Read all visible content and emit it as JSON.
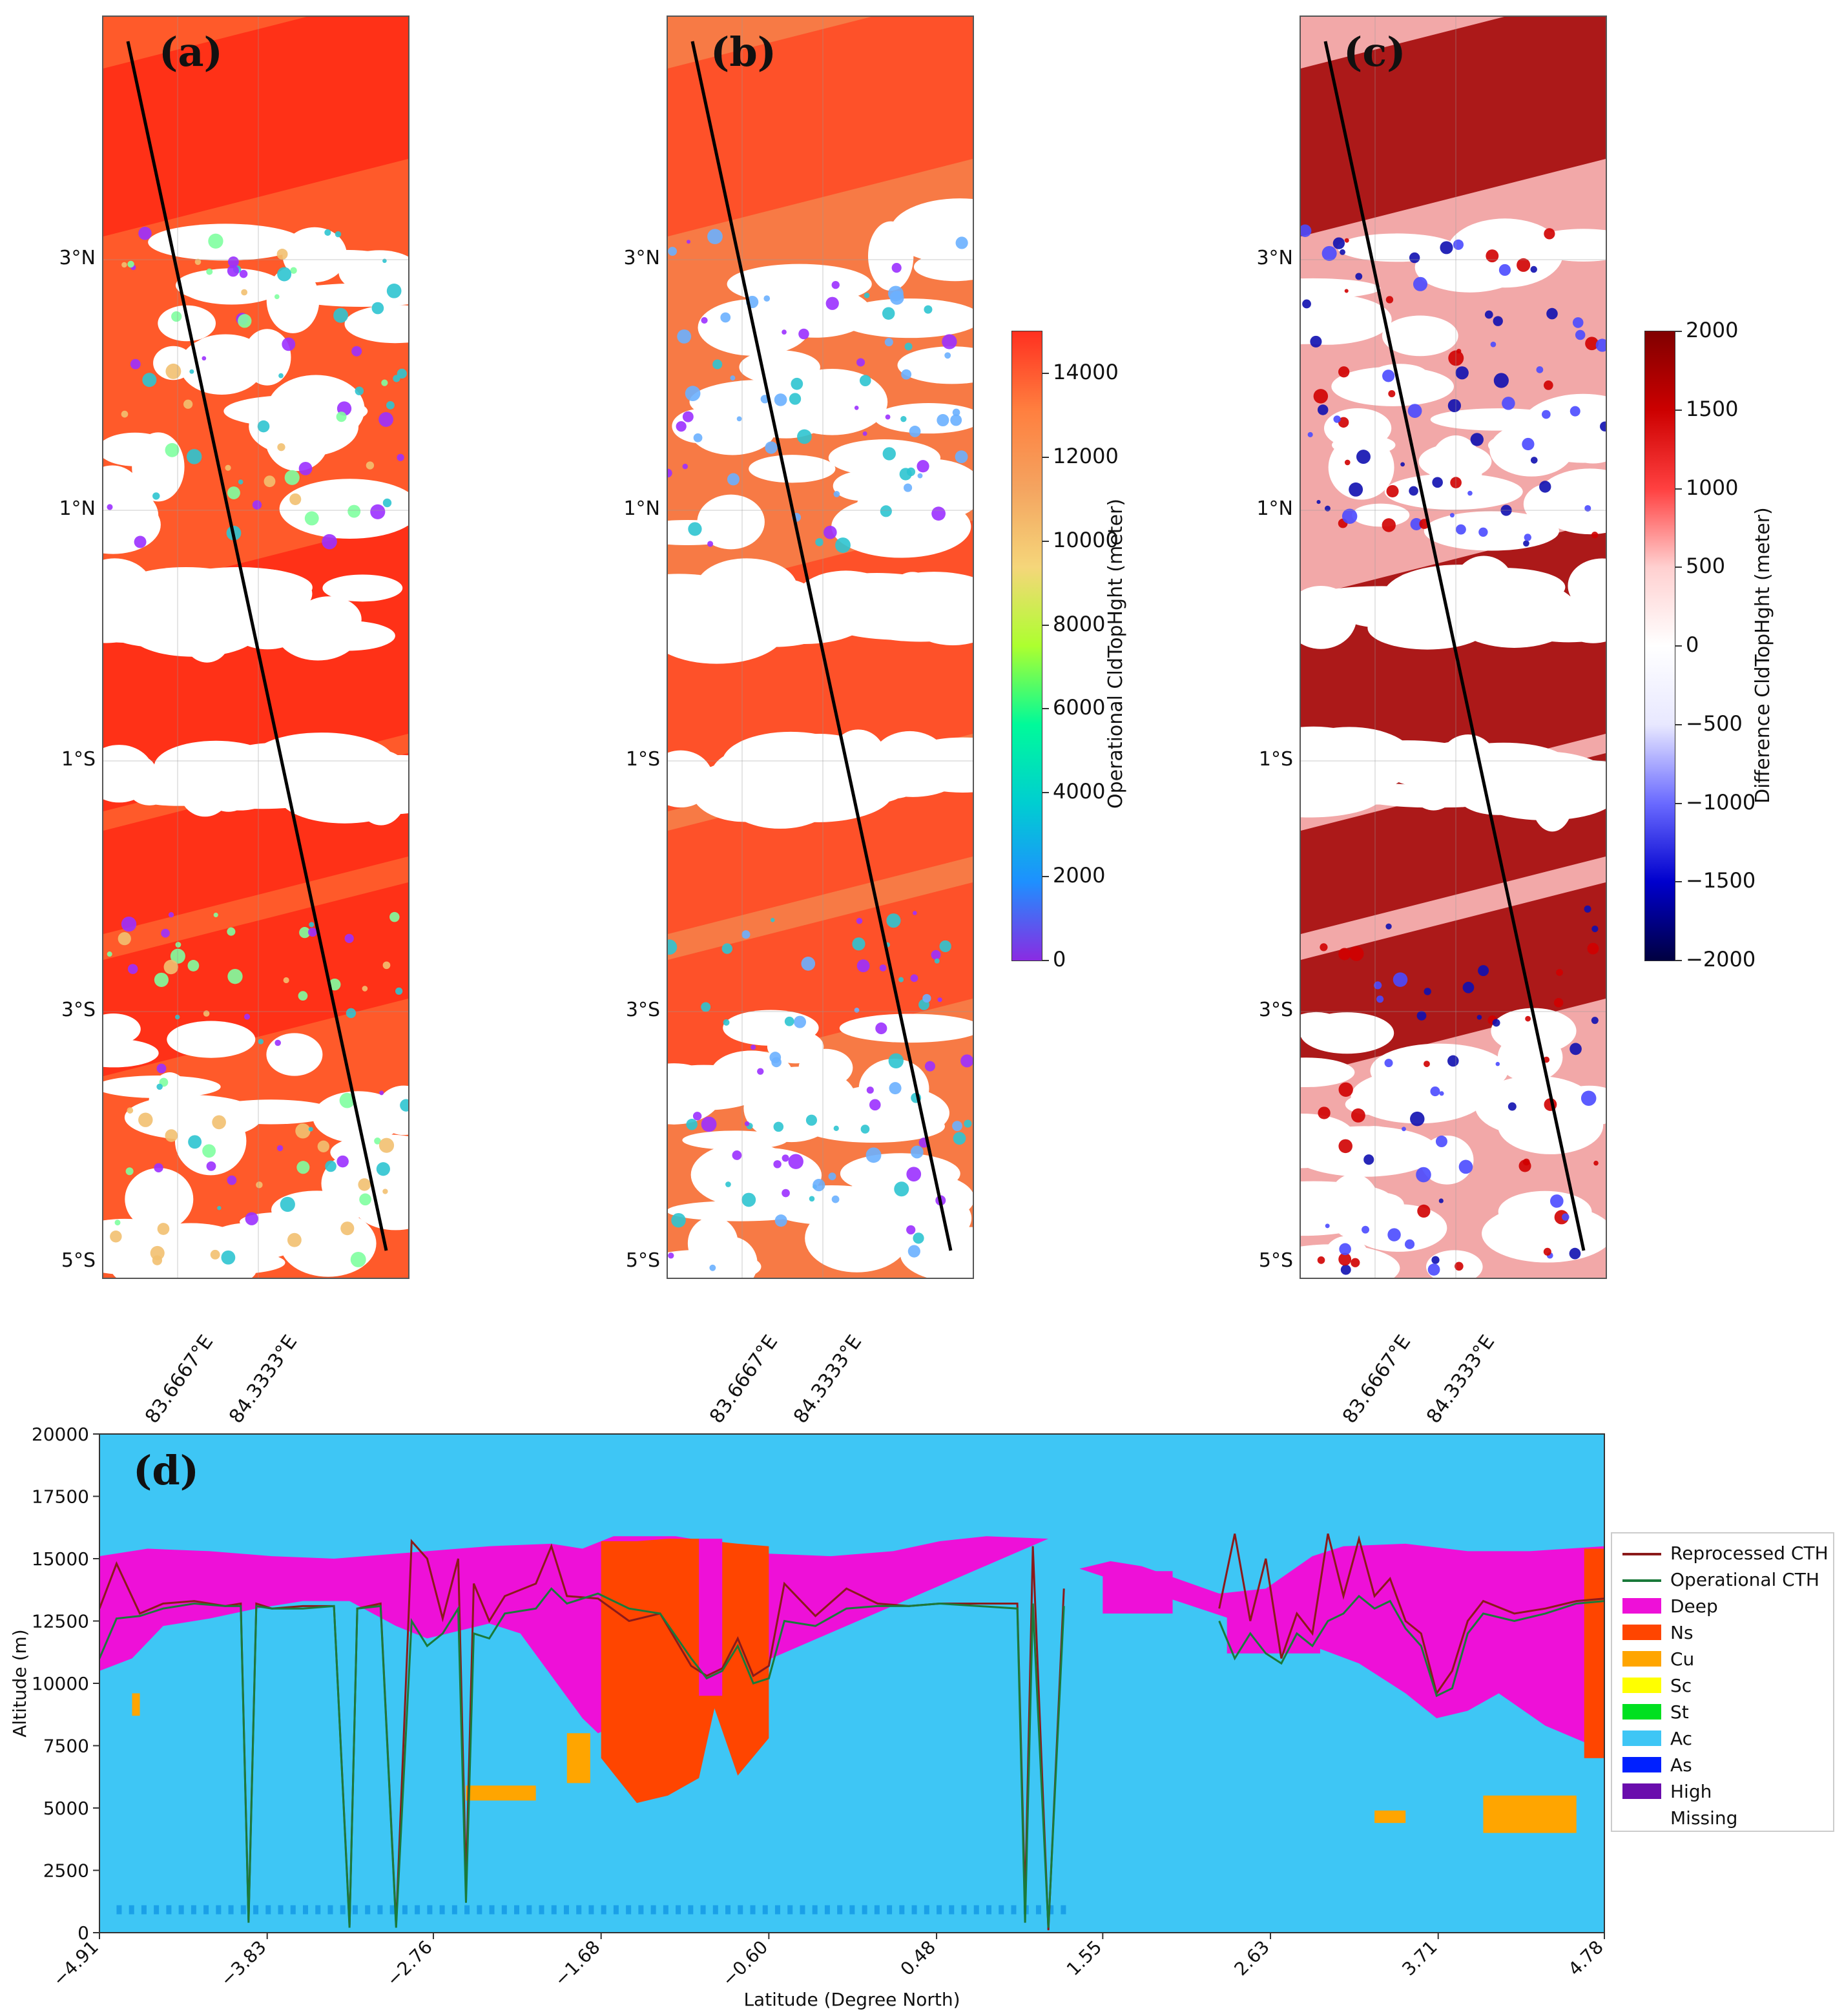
{
  "maps": {
    "panels": [
      {
        "letter": "(a)",
        "id": "a"
      },
      {
        "letter": "(b)",
        "id": "b"
      },
      {
        "letter": "(c)",
        "id": "c"
      }
    ],
    "lat_labels": [
      "3°N",
      "1°N",
      "1°S",
      "3°S",
      "5°S"
    ],
    "lon_labels": [
      "83.6667°E",
      "84.3333°E"
    ]
  },
  "colorbar_operational": {
    "label": "Operational CldTopHght (meter)",
    "ticks": [
      "14000",
      "12000",
      "10000",
      "8000",
      "6000",
      "4000",
      "2000",
      "0"
    ],
    "range": [
      0,
      15000
    ],
    "colors": [
      "#8a2be2",
      "#1e90ff",
      "#00ced1",
      "#00fa9a",
      "#adff2f",
      "#f5d67a",
      "#f4a460",
      "#ff7f3f",
      "#ff3020"
    ]
  },
  "colorbar_difference": {
    "label": "Difference CldTopHght (meter)",
    "ticks": [
      "2000",
      "1500",
      "1000",
      "500",
      "0",
      "−500",
      "−1000",
      "−1500",
      "−2000"
    ],
    "range": [
      -2000,
      2000
    ],
    "colors": [
      "#000040",
      "#0000cd",
      "#6a6aff",
      "#e8e8ff",
      "#ffffff",
      "#ffd0d0",
      "#ff4040",
      "#cc0000",
      "#800000"
    ]
  },
  "chart_data": {
    "type": "area",
    "panel_letter": "(d)",
    "xlabel": "Latitude (Degree North)",
    "ylabel": "Altitude (m)",
    "xlim": [
      -4.91,
      4.78
    ],
    "ylim": [
      0,
      20000
    ],
    "x_ticks": [
      "−4.91",
      "−3.83",
      "−2.76",
      "−1.68",
      "−0.60",
      "0.48",
      "1.55",
      "2.63",
      "3.71",
      "4.78"
    ],
    "y_ticks": [
      "0",
      "2500",
      "5000",
      "7500",
      "10000",
      "12500",
      "15000",
      "17500",
      "20000"
    ],
    "background_class": "Ac",
    "legend_placement": "right",
    "legend": [
      {
        "name": "Reprocessed CTH",
        "kind": "line",
        "color": "#8b1a1a"
      },
      {
        "name": "Operational CTH",
        "kind": "line",
        "color": "#1a7a3a"
      },
      {
        "name": "Deep",
        "kind": "patch",
        "color": "#ee10d8"
      },
      {
        "name": "Ns",
        "kind": "patch",
        "color": "#ff4500"
      },
      {
        "name": "Cu",
        "kind": "patch",
        "color": "#ffa500"
      },
      {
        "name": "Sc",
        "kind": "patch",
        "color": "#ffff00"
      },
      {
        "name": "St",
        "kind": "patch",
        "color": "#00e020"
      },
      {
        "name": "Ac",
        "kind": "patch",
        "color": "#3ec6f5"
      },
      {
        "name": "As",
        "kind": "patch",
        "color": "#0020ff"
      },
      {
        "name": "High",
        "kind": "patch",
        "color": "#6a0dad"
      },
      {
        "name": "Missing",
        "kind": "patch",
        "color": "#ffffff"
      }
    ],
    "deep_top": {
      "x": [
        -4.91,
        -4.6,
        -4.2,
        -3.8,
        -3.4,
        -3.2,
        -3.0,
        -2.8,
        -2.4,
        -2.0,
        -1.8,
        -1.6,
        -1.2,
        -1.0,
        -0.6,
        -0.2,
        0.2,
        0.5,
        0.8,
        1.2
      ],
      "y": [
        15100,
        15400,
        15300,
        15100,
        15000,
        15100,
        15200,
        15300,
        15500,
        15600,
        15400,
        15900,
        15900,
        15700,
        15200,
        15100,
        15300,
        15700,
        15900,
        15800
      ]
    },
    "deep_bottom": {
      "x": [
        -4.91,
        -4.7,
        -4.5,
        -4.2,
        -3.9,
        -3.6,
        -3.3,
        -3.0,
        -2.8,
        -2.4,
        -2.2,
        -2.0,
        -1.8,
        -1.7
      ],
      "y": [
        10500,
        11000,
        12300,
        12600,
        13000,
        13300,
        13300,
        12300,
        11800,
        12400,
        12000,
        10300,
        8600,
        8000
      ]
    },
    "deep_right_top": {
      "x": [
        1.4,
        1.6,
        1.8,
        2.3,
        2.6,
        2.9,
        3.1,
        3.5,
        3.9,
        4.3,
        4.78
      ],
      "y": [
        14600,
        14900,
        14700,
        13600,
        13800,
        15100,
        15500,
        15600,
        15300,
        15300,
        15500
      ]
    },
    "deep_right_bottom": {
      "x": [
        2.9,
        3.2,
        3.5,
        3.7,
        3.9,
        4.1,
        4.4,
        4.78
      ],
      "y": [
        11500,
        10800,
        9600,
        8600,
        8900,
        9600,
        8300,
        7300
      ]
    },
    "ns_block": {
      "x": [
        -1.68,
        -1.45,
        -1.25,
        -1.05,
        -0.95,
        -0.8,
        -0.6
      ],
      "top": [
        15700,
        15700,
        15800,
        15800,
        15700,
        15600,
        15500
      ],
      "bottom": [
        7000,
        5200,
        5500,
        6200,
        9000,
        6300,
        7800
      ]
    },
    "cu_patches": [
      {
        "x": [
          -2.55,
          -2.1
        ],
        "y": [
          5300,
          5900
        ]
      },
      {
        "x": [
          -1.9,
          -1.75
        ],
        "y": [
          6000,
          8000
        ]
      },
      {
        "x": [
          3.3,
          3.5
        ],
        "y": [
          4400,
          4900
        ]
      },
      {
        "x": [
          4.0,
          4.6
        ],
        "y": [
          4000,
          5500
        ]
      },
      {
        "x": [
          -4.7,
          -4.65
        ],
        "y": [
          8700,
          9600
        ]
      }
    ],
    "series": [
      {
        "name": "Reprocessed CTH",
        "x": [
          -4.91,
          -4.8,
          -4.65,
          -4.5,
          -4.3,
          -4.1,
          -4.0,
          -3.95,
          -3.9,
          -3.8,
          -3.6,
          -3.4,
          -3.3,
          -3.25,
          -3.1,
          -3.0,
          -2.9,
          -2.8,
          -2.7,
          -2.6,
          -2.55,
          -2.5,
          -2.4,
          -2.3,
          -2.1,
          -2.0,
          -1.9,
          -1.7,
          -1.5,
          -1.3,
          -1.1,
          -1.0,
          -0.9,
          -0.8,
          -0.7,
          -0.6,
          -0.5,
          -0.3,
          -0.1,
          0.1,
          0.3,
          0.5,
          1.0,
          1.05,
          1.1,
          1.2,
          1.3
        ],
        "y": [
          13000,
          14800,
          12800,
          13200,
          13300,
          13100,
          13200,
          500,
          13200,
          13000,
          13100,
          13100,
          300,
          13000,
          13200,
          300,
          15700,
          15000,
          12600,
          15000,
          2000,
          14000,
          12500,
          13500,
          14000,
          15500,
          13500,
          13400,
          12500,
          12800,
          10700,
          10300,
          10600,
          11800,
          10300,
          10700,
          14000,
          12700,
          13800,
          13200,
          13100,
          13200,
          13200,
          1200,
          15500,
          100,
          13800
        ]
      },
      {
        "name": "Operational CTH",
        "x": [
          -4.91,
          -4.8,
          -4.65,
          -4.5,
          -4.3,
          -4.1,
          -4.0,
          -3.95,
          -3.9,
          -3.8,
          -3.6,
          -3.4,
          -3.3,
          -3.25,
          -3.1,
          -3.0,
          -2.9,
          -2.8,
          -2.7,
          -2.6,
          -2.55,
          -2.5,
          -2.4,
          -2.3,
          -2.1,
          -2.0,
          -1.9,
          -1.7,
          -1.5,
          -1.3,
          -1.1,
          -1.0,
          -0.9,
          -0.8,
          -0.7,
          -0.6,
          -0.5,
          -0.3,
          -0.1,
          0.1,
          0.3,
          0.5,
          1.0,
          1.05,
          1.1,
          1.2,
          1.3
        ],
        "y": [
          11000,
          12600,
          12700,
          13000,
          13200,
          13100,
          13100,
          400,
          13100,
          13000,
          13000,
          13100,
          200,
          13000,
          13100,
          200,
          12500,
          11500,
          12000,
          13000,
          1200,
          12000,
          11800,
          12800,
          13000,
          13800,
          13200,
          13600,
          13000,
          12800,
          11000,
          10200,
          10500,
          11500,
          10000,
          10200,
          12500,
          12300,
          13000,
          13100,
          13100,
          13200,
          13000,
          400,
          13200,
          200,
          13100
        ]
      },
      {
        "name": "Reprocessed CTH",
        "x": [
          2.3,
          2.4,
          2.5,
          2.6,
          2.7,
          2.8,
          2.9,
          3.0,
          3.1,
          3.2,
          3.3,
          3.4,
          3.5,
          3.6,
          3.7,
          3.8,
          3.9,
          4.0,
          4.2,
          4.4,
          4.6,
          4.78
        ],
        "y": [
          13000,
          16000,
          12500,
          15000,
          11000,
          12800,
          12000,
          16000,
          13500,
          15800,
          13500,
          14200,
          12500,
          12000,
          9600,
          10500,
          12500,
          13300,
          12800,
          13000,
          13300,
          13400
        ]
      },
      {
        "name": "Operational CTH",
        "x": [
          2.3,
          2.4,
          2.5,
          2.6,
          2.7,
          2.8,
          2.9,
          3.0,
          3.1,
          3.2,
          3.3,
          3.4,
          3.5,
          3.6,
          3.7,
          3.8,
          3.9,
          4.0,
          4.2,
          4.4,
          4.6,
          4.78
        ],
        "y": [
          12500,
          11000,
          12000,
          11200,
          10800,
          12000,
          11500,
          12500,
          12800,
          13500,
          13000,
          13300,
          12200,
          11500,
          9500,
          9800,
          12000,
          12800,
          12500,
          12800,
          13200,
          13300
        ]
      }
    ]
  }
}
